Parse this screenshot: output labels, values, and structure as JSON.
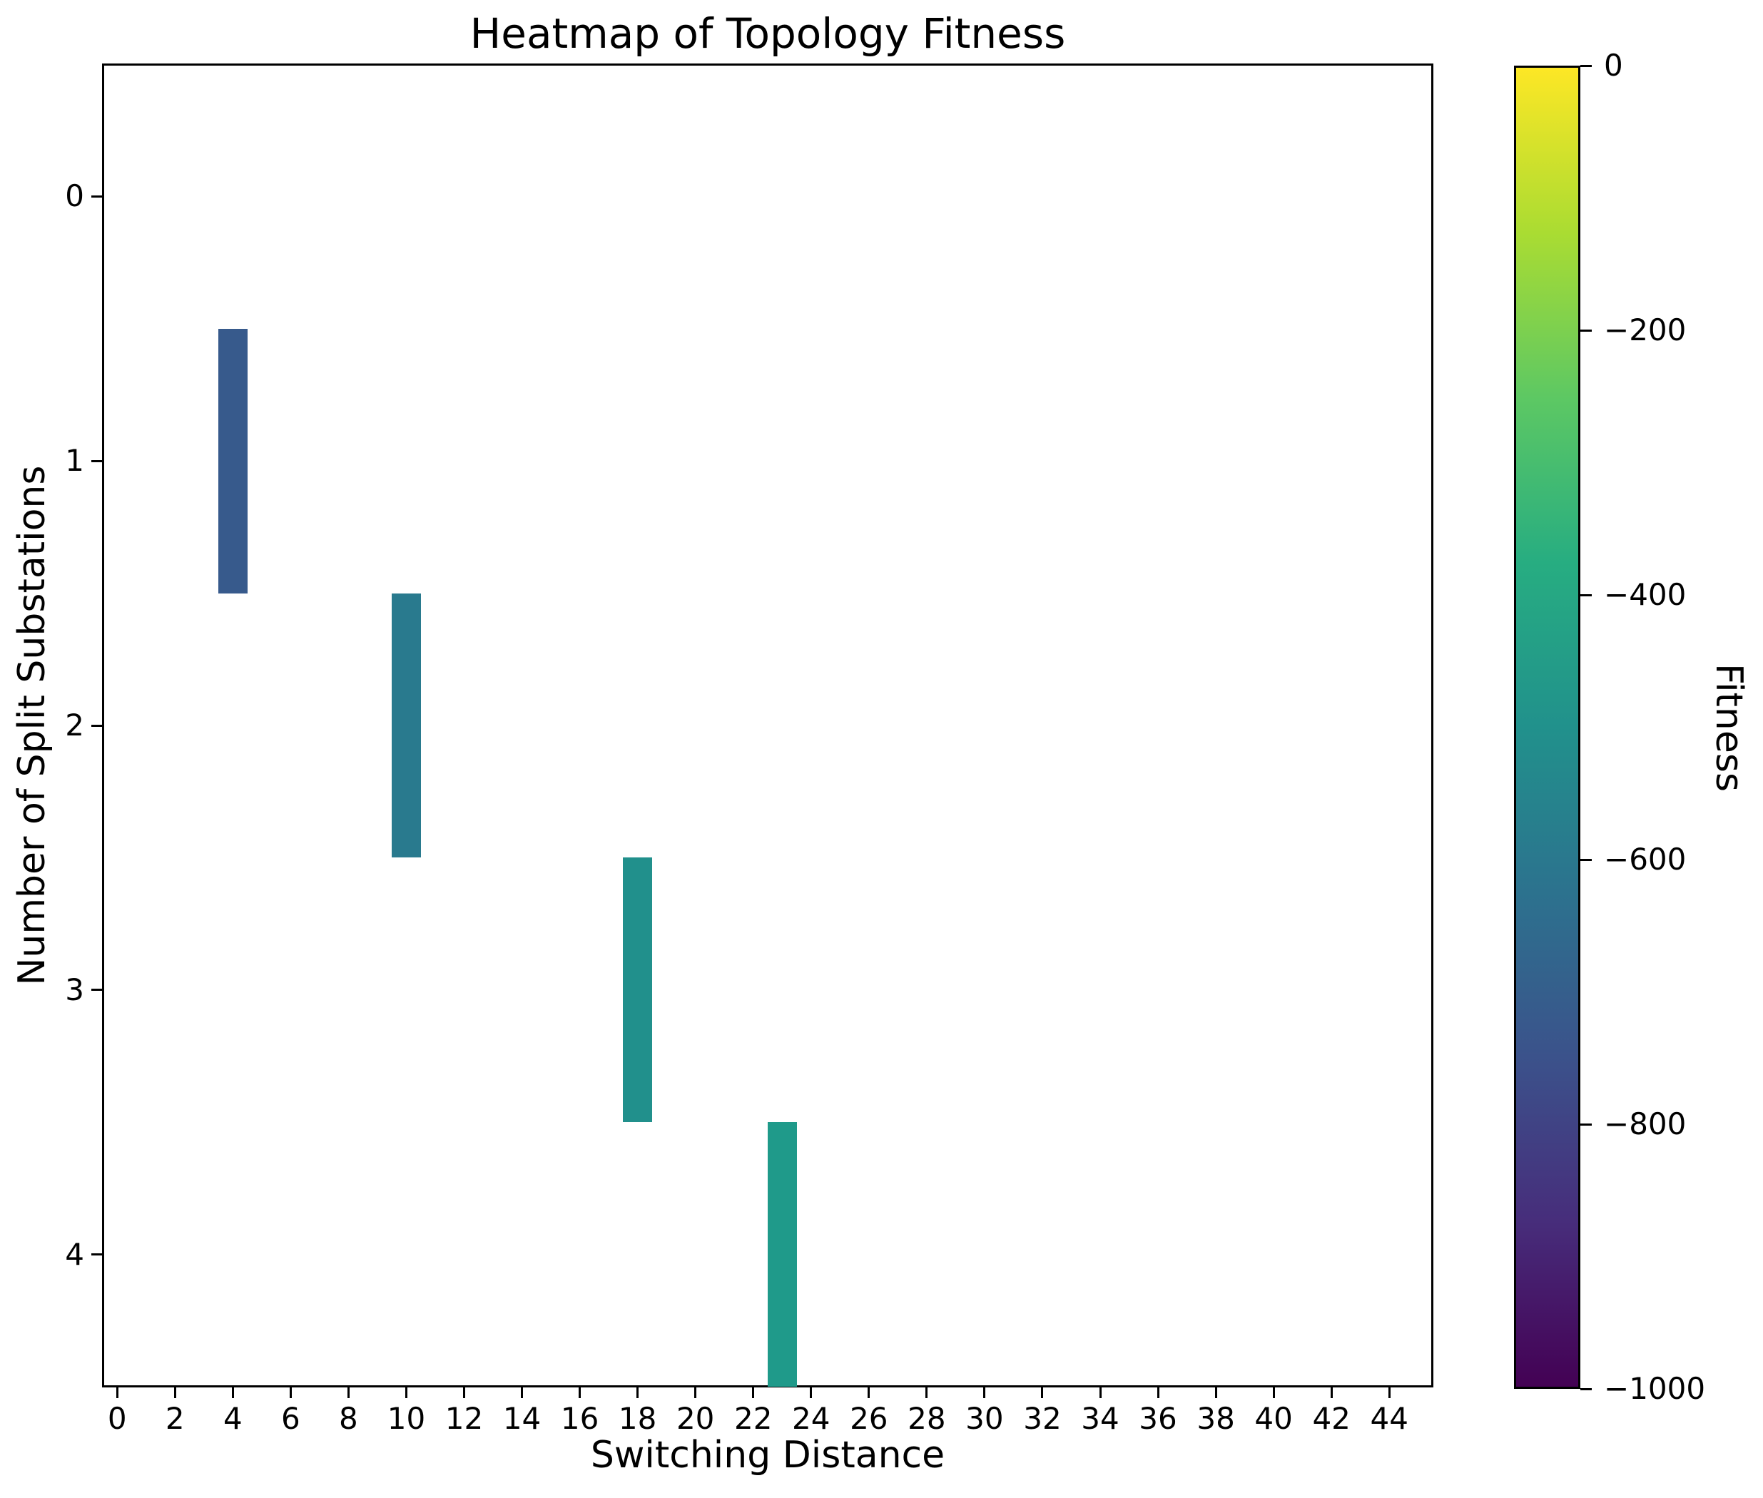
{
  "title": "Heatmap of Topology Fitness",
  "chart_data": {
    "type": "heatmap",
    "title": "Heatmap of Topology Fitness",
    "xlabel": "Switching Distance",
    "ylabel": "Number of Split Substations",
    "x_ticks": [
      0,
      2,
      4,
      6,
      8,
      10,
      12,
      14,
      16,
      18,
      20,
      22,
      24,
      26,
      28,
      30,
      32,
      34,
      36,
      38,
      40,
      42,
      44
    ],
    "y_ticks": [
      0,
      1,
      2,
      3,
      4
    ],
    "x_range": [
      -0.5,
      45.5
    ],
    "y_rows": 5,
    "grid": false,
    "background_color": "#FFFFFF",
    "empty_cell_color": "#FFFFFF",
    "cells": [
      {
        "x": 4,
        "y": 1,
        "fitness_est": -730,
        "color": "#375A8C"
      },
      {
        "x": 10,
        "y": 2,
        "fitness_est": -600,
        "color": "#297A8E"
      },
      {
        "x": 18,
        "y": 3,
        "fitness_est": -500,
        "color": "#21908C"
      },
      {
        "x": 23,
        "y": 4,
        "fitness_est": -470,
        "color": "#1F9A8A"
      }
    ],
    "colorbar": {
      "label": "Fitness",
      "colormap": "viridis",
      "min": -1000,
      "max": 0,
      "tick_labels": [
        "0",
        "−200",
        "−400",
        "−600",
        "−800",
        "−1000"
      ]
    }
  }
}
